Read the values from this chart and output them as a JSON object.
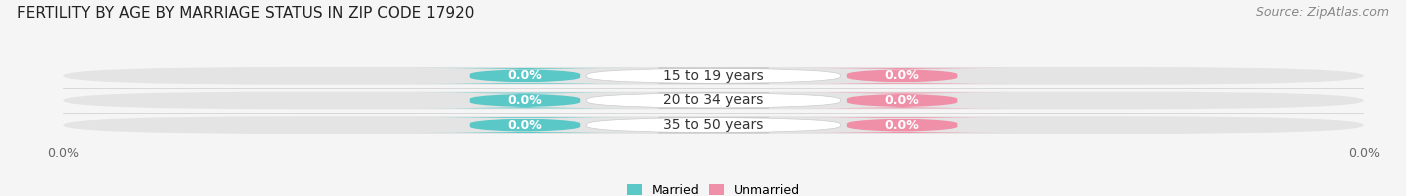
{
  "title": "FERTILITY BY AGE BY MARRIAGE STATUS IN ZIP CODE 17920",
  "source": "Source: ZipAtlas.com",
  "categories": [
    "15 to 19 years",
    "20 to 34 years",
    "35 to 50 years"
  ],
  "married_values": [
    0.0,
    0.0,
    0.0
  ],
  "unmarried_values": [
    0.0,
    0.0,
    0.0
  ],
  "married_color": "#5bc8c8",
  "unmarried_color": "#f090a8",
  "bar_bg_color": "#e4e4e4",
  "bar_bg_color2": "#eeeeee",
  "white_center_color": "#ffffff",
  "background_color": "#f5f5f5",
  "title_fontsize": 11,
  "source_fontsize": 9,
  "category_fontsize": 10,
  "value_fontsize": 9,
  "axis_tick_fontsize": 9,
  "left_tick_label": "0.0%",
  "right_tick_label": "0.0%"
}
